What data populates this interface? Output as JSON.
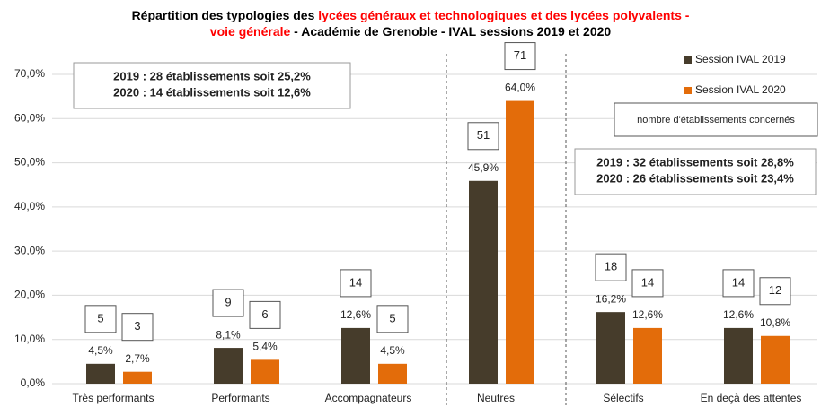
{
  "chart_data": {
    "type": "bar",
    "title": [
      [
        {
          "text": "Répartition des typologies des ",
          "color": "#000000"
        },
        {
          "text": "lycées généraux et technologiques et des lycées polyvalents -",
          "color": "#ff0000"
        }
      ],
      [
        {
          "text": "voie générale",
          "color": "#ff0000"
        },
        {
          "text": " - Académie de Grenoble - IVAL sessions 2019 et 2020",
          "color": "#000000"
        }
      ]
    ],
    "categories": [
      "Très performants",
      "Performants",
      "Accompagnateurs",
      "Neutres",
      "Sélectifs",
      "En deçà des attentes"
    ],
    "series": [
      {
        "name": "Session IVAL 2019",
        "color": "#463c2b",
        "values": [
          4.5,
          8.1,
          12.6,
          45.9,
          16.2,
          12.6
        ],
        "value_labels": [
          "4,5%",
          "8,1%",
          "12,6%",
          "45,9%",
          "16,2%",
          "12,6%"
        ],
        "counts": [
          5,
          9,
          14,
          51,
          18,
          14
        ]
      },
      {
        "name": "Session IVAL 2020",
        "color": "#e36c0a",
        "values": [
          2.7,
          5.4,
          4.5,
          64.0,
          12.6,
          10.8
        ],
        "value_labels": [
          "2,7%",
          "5,4%",
          "4,5%",
          "64,0%",
          "12,6%",
          "10,8%"
        ],
        "counts": [
          3,
          6,
          5,
          71,
          14,
          12
        ]
      }
    ],
    "counts_note": "nombre d'établissements concernés",
    "annotations": [
      [
        {
          "text": "2019 : 28 établissements soit 25,2%",
          "color": "#463c2b"
        },
        {
          "text": "2020 : 14 établissements soit 12,6%",
          "color": "#f0a050"
        }
      ],
      [
        {
          "text": "2019 : 32 établissements soit 28,8%",
          "color": "#463c2b"
        },
        {
          "text": "2020 : 26 établissements soit 23,4%",
          "color": "#f0a050"
        }
      ]
    ],
    "ylim": [
      0,
      70
    ],
    "yticks": [
      {
        "value": 0,
        "label": "0,0%"
      },
      {
        "value": 10,
        "label": "10,0%"
      },
      {
        "value": 20,
        "label": "20,0%"
      },
      {
        "value": 30,
        "label": "30,0%"
      },
      {
        "value": 40,
        "label": "40,0%"
      },
      {
        "value": 50,
        "label": "50,0%"
      },
      {
        "value": 60,
        "label": "60,0%"
      },
      {
        "value": 70,
        "label": "70,0%"
      }
    ],
    "grid": true
  }
}
